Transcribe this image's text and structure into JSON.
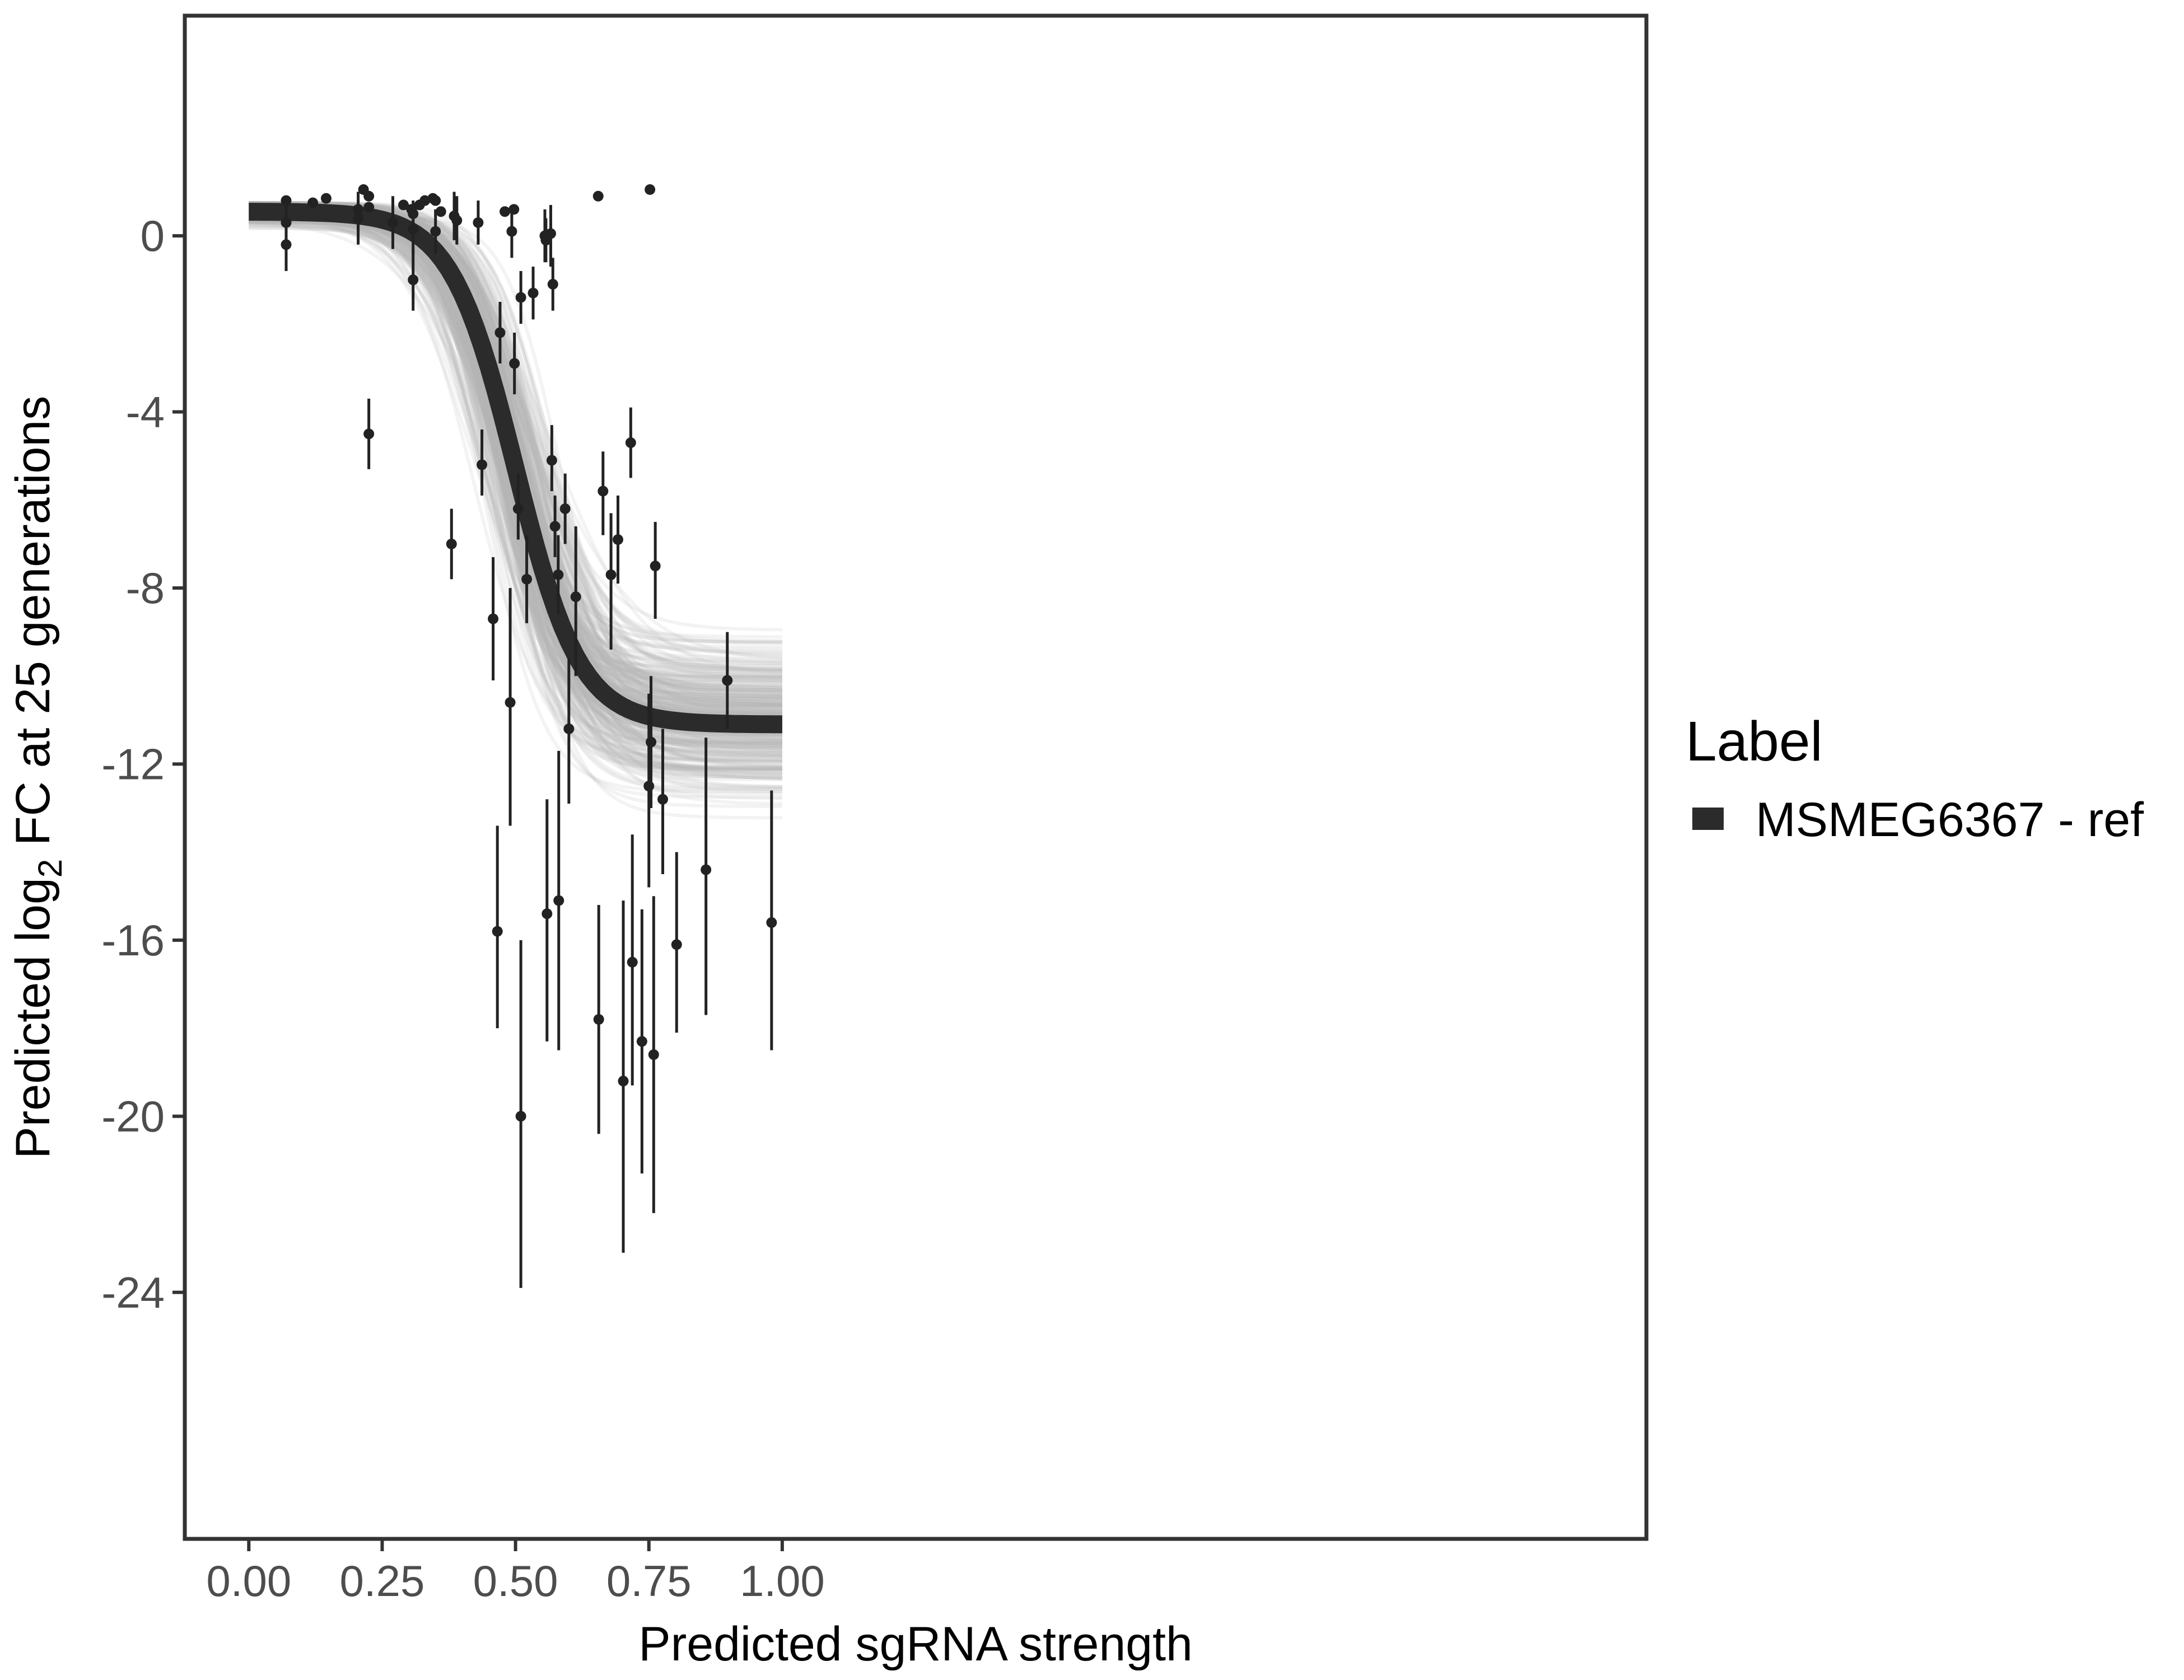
{
  "chart_data": {
    "type": "scatter",
    "xlabel": "Predicted sgRNA strength",
    "ylabel": {
      "prefix": "Predicted  log",
      "subscript": "2",
      "suffix": " FC at 25 generations"
    },
    "xlim": [
      -0.12,
      2.62
    ],
    "ylim": [
      -29.6,
      5.0
    ],
    "xticks": [
      0.0,
      0.25,
      0.5,
      0.75,
      1.0
    ],
    "xtick_labels": [
      "0.00",
      "0.25",
      "0.50",
      "0.75",
      "1.00"
    ],
    "yticks": [
      0,
      -4,
      -8,
      -12,
      -16,
      -20,
      -24
    ],
    "ytick_labels": [
      "0",
      "-4",
      "-8",
      "-12",
      "-16",
      "-20",
      "-24"
    ],
    "grid": false,
    "legend": {
      "title": "Label",
      "placement": "right",
      "entries": [
        {
          "label": "MSMEG6367 - ref",
          "color": "#2b2b2b"
        }
      ]
    },
    "fit_curve": {
      "series": "MSMEG6367 - ref",
      "model": "logistic",
      "upper": 0.55,
      "lower": -11.1,
      "midpoint": 0.5,
      "slope": 16.5,
      "x_range": [
        0.0,
        1.0
      ],
      "color": "#2b2b2b"
    },
    "posterior_band": {
      "color": "#b3b3b3",
      "n_draws": 300,
      "upper_range": [
        -0.55,
        0.75
      ],
      "lower_range": [
        -15.9,
        -7.4
      ],
      "midpoint_range": [
        0.36,
        0.64
      ],
      "slope_range": [
        7.0,
        28.0
      ]
    },
    "points": [
      {
        "x": 0.07,
        "y": 0.8,
        "lo": 0.8,
        "hi": 0.8
      },
      {
        "x": 0.07,
        "y": 0.3,
        "lo": -0.2,
        "hi": 0.8
      },
      {
        "x": 0.07,
        "y": -0.2,
        "lo": -0.8,
        "hi": 0.4
      },
      {
        "x": 0.12,
        "y": 0.75,
        "lo": 0.75,
        "hi": 0.75
      },
      {
        "x": 0.145,
        "y": 0.85,
        "lo": 0.85,
        "hi": 0.85
      },
      {
        "x": 0.205,
        "y": 0.6,
        "lo": 0.1,
        "hi": 1.0
      },
      {
        "x": 0.205,
        "y": 0.4,
        "lo": -0.2,
        "hi": 0.8
      },
      {
        "x": 0.215,
        "y": 1.05,
        "lo": 1.05,
        "hi": 1.05
      },
      {
        "x": 0.225,
        "y": 0.9,
        "lo": 0.9,
        "hi": 0.9
      },
      {
        "x": 0.225,
        "y": 0.65,
        "lo": 0.65,
        "hi": 0.65
      },
      {
        "x": 0.225,
        "y": -4.5,
        "lo": -5.3,
        "hi": -3.7
      },
      {
        "x": 0.27,
        "y": 0.3,
        "lo": -0.3,
        "hi": 0.9
      },
      {
        "x": 0.29,
        "y": 0.7,
        "lo": 0.7,
        "hi": 0.7
      },
      {
        "x": 0.305,
        "y": 0.6,
        "lo": 0.6,
        "hi": 0.6
      },
      {
        "x": 0.308,
        "y": 0.5,
        "lo": 0.1,
        "hi": 0.8
      },
      {
        "x": 0.308,
        "y": 0.15,
        "lo": -0.4,
        "hi": 0.7
      },
      {
        "x": 0.308,
        "y": -1.0,
        "lo": -1.7,
        "hi": -0.3
      },
      {
        "x": 0.32,
        "y": 0.7,
        "lo": 0.7,
        "hi": 0.7
      },
      {
        "x": 0.33,
        "y": 0.8,
        "lo": 0.8,
        "hi": 0.8
      },
      {
        "x": 0.345,
        "y": 0.85,
        "lo": 0.85,
        "hi": 0.85
      },
      {
        "x": 0.35,
        "y": 0.8,
        "lo": 0.8,
        "hi": 0.8
      },
      {
        "x": 0.35,
        "y": 0.1,
        "lo": -0.4,
        "hi": 0.6
      },
      {
        "x": 0.36,
        "y": 0.55,
        "lo": 0.55,
        "hi": 0.55
      },
      {
        "x": 0.38,
        "y": -7.0,
        "lo": -7.8,
        "hi": -6.2
      },
      {
        "x": 0.385,
        "y": 0.45,
        "lo": -0.1,
        "hi": 1.0
      },
      {
        "x": 0.39,
        "y": 0.35,
        "lo": -0.2,
        "hi": 0.9
      },
      {
        "x": 0.43,
        "y": 0.3,
        "lo": -0.2,
        "hi": 0.8
      },
      {
        "x": 0.437,
        "y": -5.2,
        "lo": -5.9,
        "hi": -4.4
      },
      {
        "x": 0.458,
        "y": -8.7,
        "lo": -10.1,
        "hi": -7.3
      },
      {
        "x": 0.466,
        "y": -15.8,
        "lo": -18.0,
        "hi": -13.4
      },
      {
        "x": 0.471,
        "y": -2.2,
        "lo": -2.9,
        "hi": -1.5
      },
      {
        "x": 0.48,
        "y": 0.55,
        "lo": 0.55,
        "hi": 0.55
      },
      {
        "x": 0.49,
        "y": -10.6,
        "lo": -13.4,
        "hi": -8.0
      },
      {
        "x": 0.493,
        "y": 0.1,
        "lo": -0.5,
        "hi": 0.6
      },
      {
        "x": 0.497,
        "y": 0.6,
        "lo": 0.6,
        "hi": 0.6
      },
      {
        "x": 0.498,
        "y": -2.9,
        "lo": -3.6,
        "hi": -2.2
      },
      {
        "x": 0.505,
        "y": -6.2,
        "lo": -6.9,
        "hi": -5.4
      },
      {
        "x": 0.51,
        "y": -1.4,
        "lo": -2.0,
        "hi": -0.8
      },
      {
        "x": 0.51,
        "y": -20.0,
        "lo": -23.9,
        "hi": -16.0
      },
      {
        "x": 0.521,
        "y": -7.8,
        "lo": -8.8,
        "hi": -6.8
      },
      {
        "x": 0.533,
        "y": -1.3,
        "lo": -1.9,
        "hi": -0.7
      },
      {
        "x": 0.555,
        "y": 0.0,
        "lo": -0.6,
        "hi": 0.6
      },
      {
        "x": 0.557,
        "y": -0.1,
        "lo": -0.6,
        "hi": 0.4
      },
      {
        "x": 0.559,
        "y": -15.4,
        "lo": -18.3,
        "hi": -12.8
      },
      {
        "x": 0.566,
        "y": 0.05,
        "lo": -0.7,
        "hi": 0.7
      },
      {
        "x": 0.568,
        "y": -5.1,
        "lo": -5.8,
        "hi": -4.3
      },
      {
        "x": 0.57,
        "y": -1.1,
        "lo": -1.7,
        "hi": -0.5
      },
      {
        "x": 0.574,
        "y": -6.6,
        "lo": -7.3,
        "hi": -5.9
      },
      {
        "x": 0.58,
        "y": -7.7,
        "lo": -8.6,
        "hi": -6.8
      },
      {
        "x": 0.581,
        "y": -15.1,
        "lo": -18.5,
        "hi": -11.7
      },
      {
        "x": 0.593,
        "y": -6.2,
        "lo": -7.0,
        "hi": -5.4
      },
      {
        "x": 0.6,
        "y": -11.2,
        "lo": -12.9,
        "hi": -9.6
      },
      {
        "x": 0.613,
        "y": -8.2,
        "lo": -10.0,
        "hi": -6.6
      },
      {
        "x": 0.655,
        "y": 0.9,
        "lo": 0.9,
        "hi": 0.9
      },
      {
        "x": 0.656,
        "y": -17.8,
        "lo": -20.4,
        "hi": -15.2
      },
      {
        "x": 0.664,
        "y": -5.8,
        "lo": -6.8,
        "hi": -4.9
      },
      {
        "x": 0.679,
        "y": -7.7,
        "lo": -9.4,
        "hi": -6.3
      },
      {
        "x": 0.692,
        "y": -6.9,
        "lo": -7.9,
        "hi": -5.9
      },
      {
        "x": 0.702,
        "y": -19.2,
        "lo": -23.1,
        "hi": -15.1
      },
      {
        "x": 0.716,
        "y": -4.7,
        "lo": -5.5,
        "hi": -3.9
      },
      {
        "x": 0.719,
        "y": -16.5,
        "lo": -19.3,
        "hi": -13.6
      },
      {
        "x": 0.737,
        "y": -18.3,
        "lo": -21.3,
        "hi": -15.3
      },
      {
        "x": 0.75,
        "y": -12.5,
        "lo": -14.8,
        "hi": -10.4
      },
      {
        "x": 0.752,
        "y": 1.05,
        "lo": 1.05,
        "hi": 1.05
      },
      {
        "x": 0.754,
        "y": -11.5,
        "lo": -13.0,
        "hi": -10.0
      },
      {
        "x": 0.759,
        "y": -18.6,
        "lo": -22.2,
        "hi": -15.0
      },
      {
        "x": 0.762,
        "y": -7.5,
        "lo": -8.7,
        "hi": -6.5
      },
      {
        "x": 0.776,
        "y": -12.8,
        "lo": -14.5,
        "hi": -11.2
      },
      {
        "x": 0.802,
        "y": -16.1,
        "lo": -18.1,
        "hi": -14.0
      },
      {
        "x": 0.857,
        "y": -14.4,
        "lo": -17.7,
        "hi": -11.4
      },
      {
        "x": 0.897,
        "y": -10.1,
        "lo": -11.2,
        "hi": -9.0
      },
      {
        "x": 0.98,
        "y": -15.6,
        "lo": -18.5,
        "hi": -12.6
      }
    ]
  }
}
